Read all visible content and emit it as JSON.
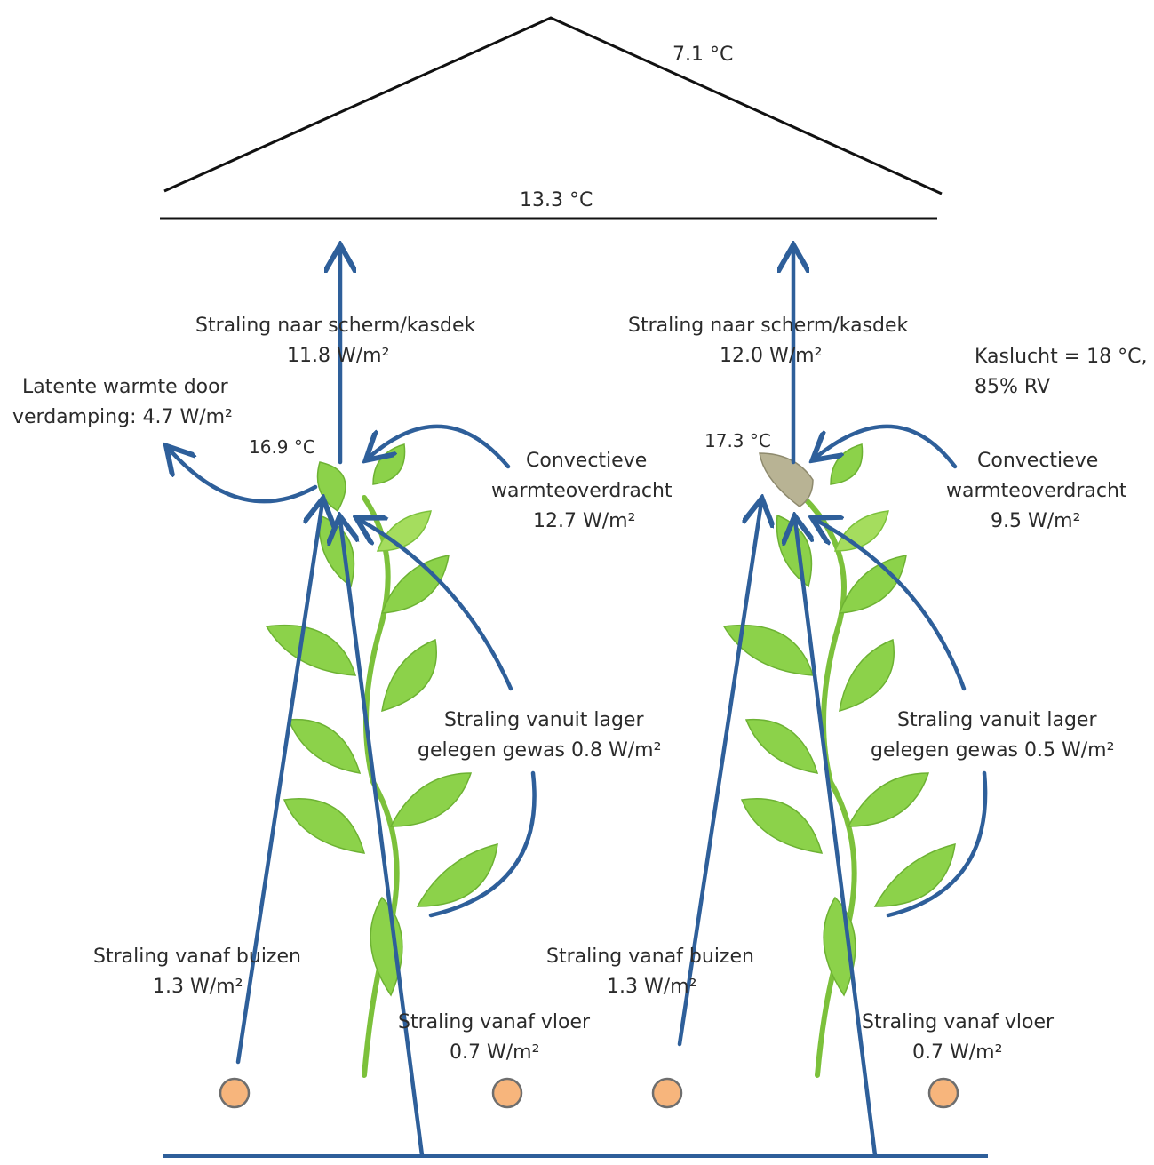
{
  "roof": {
    "outside_temp": "7.1 °C",
    "screen_temp": "13.3 °C"
  },
  "left_plant": {
    "radiation_up_label": "Straling naar scherm/kasdek",
    "radiation_up_value": "11.8 W/m²",
    "latent_label": "Latente warmte door",
    "latent_value": "verdamping:  4.7 W/m²",
    "leaf_temp": "16.9 °C",
    "convection_label_1": "Convectieve",
    "convection_label_2": "warmteoverdracht",
    "convection_value": "12.7 W/m²",
    "lower_crop_label": "Straling vanuit lager",
    "lower_crop_value": "gelegen gewas 0.8 W/m²",
    "pipes_label": "Straling vanaf buizen",
    "pipes_value": "1.3 W/m²",
    "floor_label": "Straling vanaf vloer",
    "floor_value": "0.7 W/m²"
  },
  "right_plant": {
    "radiation_up_label": "Straling naar scherm/kasdek",
    "radiation_up_value": "12.0 W/m²",
    "leaf_temp": "17.3 °C",
    "convection_label_1": "Convectieve",
    "convection_label_2": "warmteoverdracht",
    "convection_value": "9.5 W/m²",
    "lower_crop_label": "Straling vanuit lager",
    "lower_crop_value": "gelegen gewas 0.5 W/m²",
    "pipes_label": "Straling vanaf buizen",
    "pipes_value": "1.3 W/m²",
    "floor_label": "Straling vanaf vloer",
    "floor_value": "0.7 W/m²"
  },
  "greenhouse_air": {
    "line1": "Kaslucht = 18 °C,",
    "line2": "85% RV"
  },
  "colors": {
    "arrow": "#2e5f9a",
    "leaf": "#8cd24a",
    "hot_leaf": "#b8b394",
    "pipe": "#f7b57c"
  }
}
